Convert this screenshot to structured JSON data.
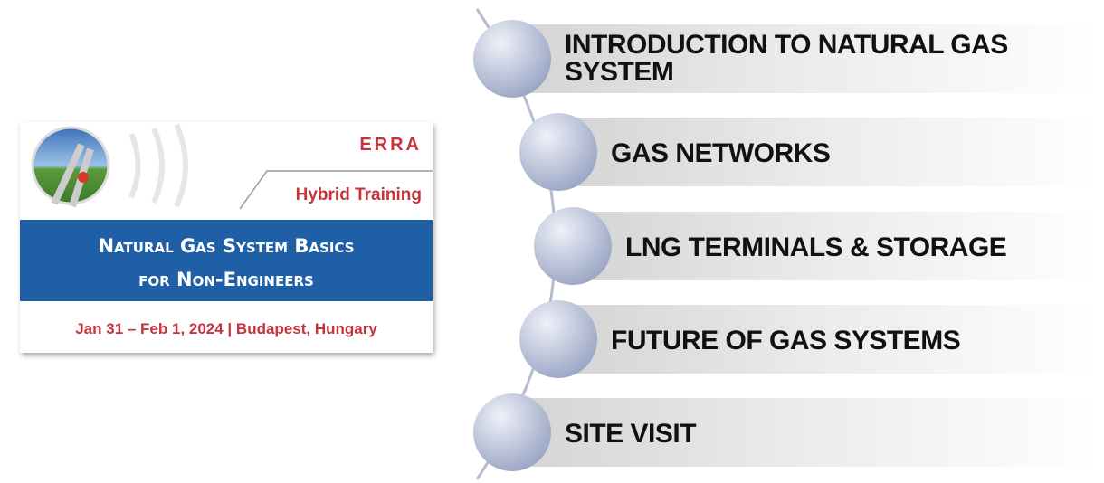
{
  "banner": {
    "logo": "ERRA",
    "tag": "Hybrid Training",
    "title_line1": "Natural Gas System Basics",
    "title_line2": "for Non-Engineers",
    "date": "Jan 31 – Feb 1, 2024 | Budapest, Hungary"
  },
  "items": [
    {
      "label": "INTRODUCTION TO NATURAL GAS SYSTEM"
    },
    {
      "label": "GAS NETWORKS"
    },
    {
      "label": "LNG TERMINALS & STORAGE"
    },
    {
      "label": "FUTURE OF GAS SYSTEMS"
    },
    {
      "label": "SITE VISIT"
    }
  ]
}
